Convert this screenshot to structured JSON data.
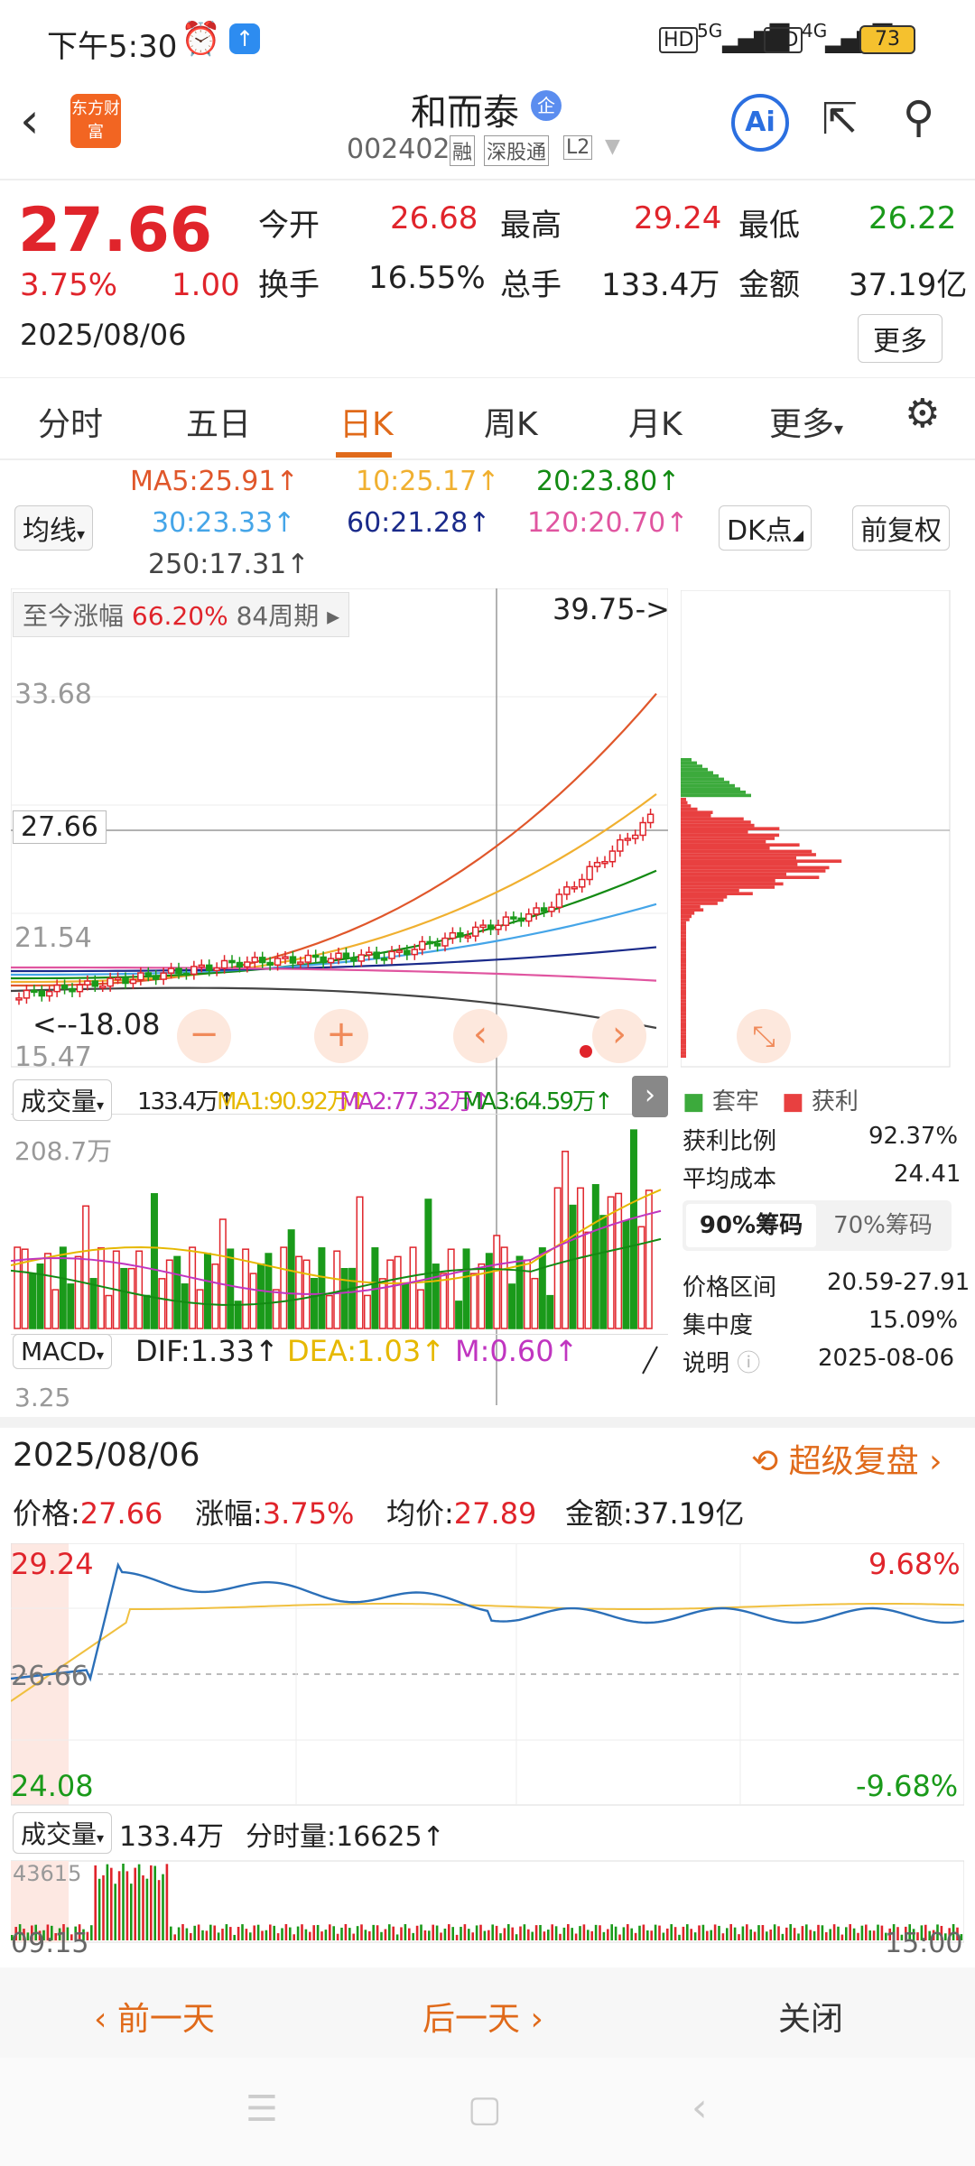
{
  "status": {
    "time": "下午5:30",
    "battery": "73",
    "net1": "5G",
    "net2": "4G"
  },
  "header": {
    "name": "和而泰",
    "badge": "企",
    "code": "002402",
    "tags": [
      "融",
      "深股通",
      "L2"
    ],
    "logo": "东方财富",
    "ai": "Ai"
  },
  "quote": {
    "price": "27.66",
    "pct": "3.75%",
    "chg": "1.00",
    "date": "2025/08/06",
    "open_l": "今开",
    "open": "26.68",
    "high_l": "最高",
    "high": "29.24",
    "low_l": "最低",
    "low": "26.22",
    "turn_l": "换手",
    "turn": "16.55%",
    "vol_l": "总手",
    "vol": "133.4万",
    "amt_l": "金额",
    "amt": "37.19亿",
    "more": "更多"
  },
  "tabs": [
    "分时",
    "五日",
    "日K",
    "周K",
    "月K",
    "更多",
    "gear-icon"
  ],
  "ma": {
    "sel": "均线",
    "ma5": "MA5:25.91↑",
    "ma10": "10:25.17↑",
    "ma20": "20:23.80↑",
    "ma30": "30:23.33↑",
    "ma60": "60:21.28↑",
    "ma120": "120:20.70↑",
    "ma250": "250:17.31↑",
    "dk": "DK点",
    "fq": "前复权"
  },
  "kline": {
    "range": "至今涨幅",
    "range_pct": "66.20%",
    "period": "84周期",
    "peak": "39.75->",
    "y1": "33.68",
    "y2": "27.66",
    "y3": "21.54",
    "y4": "15.47",
    "low": "<--18.08"
  },
  "vol": {
    "sel": "成交量",
    "v": "133.4万↑",
    "ma1": "MA1:90.92万↑",
    "ma2": "MA2:77.32万↑",
    "ma3": "MA3:64.59万↑",
    "max": "208.7万"
  },
  "macd": {
    "sel": "MACD",
    "dif": "DIF:1.33↑",
    "dea": "DEA:1.03↑",
    "m": "M:0.60↑",
    "v": "3.25"
  },
  "chip": {
    "trap": "套牢",
    "profit": "获利",
    "p_ratio_l": "获利比例",
    "p_ratio": "92.37%",
    "avg_l": "平均成本",
    "avg": "24.41",
    "t90": "90%筹码",
    "t70": "70%筹码",
    "range_l": "价格区间",
    "range": "20.59-27.91",
    "conc_l": "集中度",
    "conc": "15.09%",
    "note_l": "说明",
    "note": "2025-08-06"
  },
  "intraday": {
    "date": "2025/08/06",
    "replay": "超级复盘",
    "price_l": "价格:",
    "price": "27.66",
    "pct_l": "涨幅:",
    "pct": "3.75%",
    "avg_l": "均价:",
    "avg": "27.89",
    "amt_l": "金额:",
    "amt": "37.19亿",
    "hi": "29.24",
    "lo": "24.08",
    "mid": "26.66",
    "hip": "9.68%",
    "lop": "-9.68%",
    "vol_sel": "成交量",
    "vol": "133.4万",
    "fs_l": "分时量:",
    "fs": "16625↑",
    "vmax": "43615",
    "t0": "09:15",
    "t1": "15:00"
  },
  "bottom": {
    "prev": "前一天",
    "next": "后一天",
    "close": "关闭"
  }
}
